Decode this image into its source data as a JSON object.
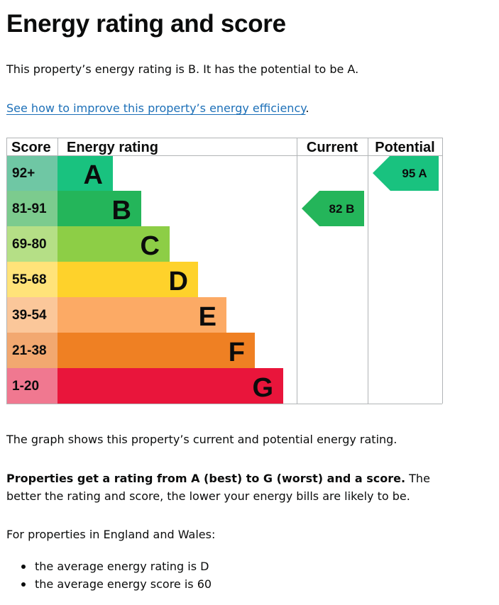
{
  "page": {
    "title": "Energy rating and score",
    "intro": "This property’s energy rating is B. It has the potential to be A.",
    "link_text": "See how to improve this property’s energy efficiency",
    "link_suffix": ".",
    "graph_caption": "The graph shows this property’s current and potential energy rating.",
    "ratings_bold": "Properties get a rating from A (best) to G (worst) and a score.",
    "ratings_rest": " The better the rating and score, the lower your energy bills are likely to be.",
    "england_wales": "For properties in England and Wales:",
    "averages": [
      "the average energy rating is D",
      "the average energy score is 60"
    ]
  },
  "chart_data": {
    "type": "bar",
    "headers": {
      "score": "Score",
      "rating": "Energy rating",
      "current": "Current",
      "potential": "Potential"
    },
    "bands": [
      {
        "band": "A",
        "score_range": "92+",
        "color": "#19c27f",
        "score_color": "#6fc7a4"
      },
      {
        "band": "B",
        "score_range": "81-91",
        "color": "#24b55a",
        "score_color": "#7ccb8e"
      },
      {
        "band": "C",
        "score_range": "69-80",
        "color": "#8dce46",
        "score_color": "#b5df86"
      },
      {
        "band": "D",
        "score_range": "55-68",
        "color": "#fed22b",
        "score_color": "#ffe379"
      },
      {
        "band": "E",
        "score_range": "39-54",
        "color": "#fcaa65",
        "score_color": "#fbc79a"
      },
      {
        "band": "F",
        "score_range": "21-38",
        "color": "#ef8023",
        "score_color": "#f2a870"
      },
      {
        "band": "G",
        "score_range": "1-20",
        "color": "#e9153b",
        "score_color": "#f07890"
      }
    ],
    "current": {
      "score": 82,
      "band": "B",
      "color": "#24b55a"
    },
    "potential": {
      "score": 95,
      "band": "A",
      "color": "#19c27f"
    }
  }
}
